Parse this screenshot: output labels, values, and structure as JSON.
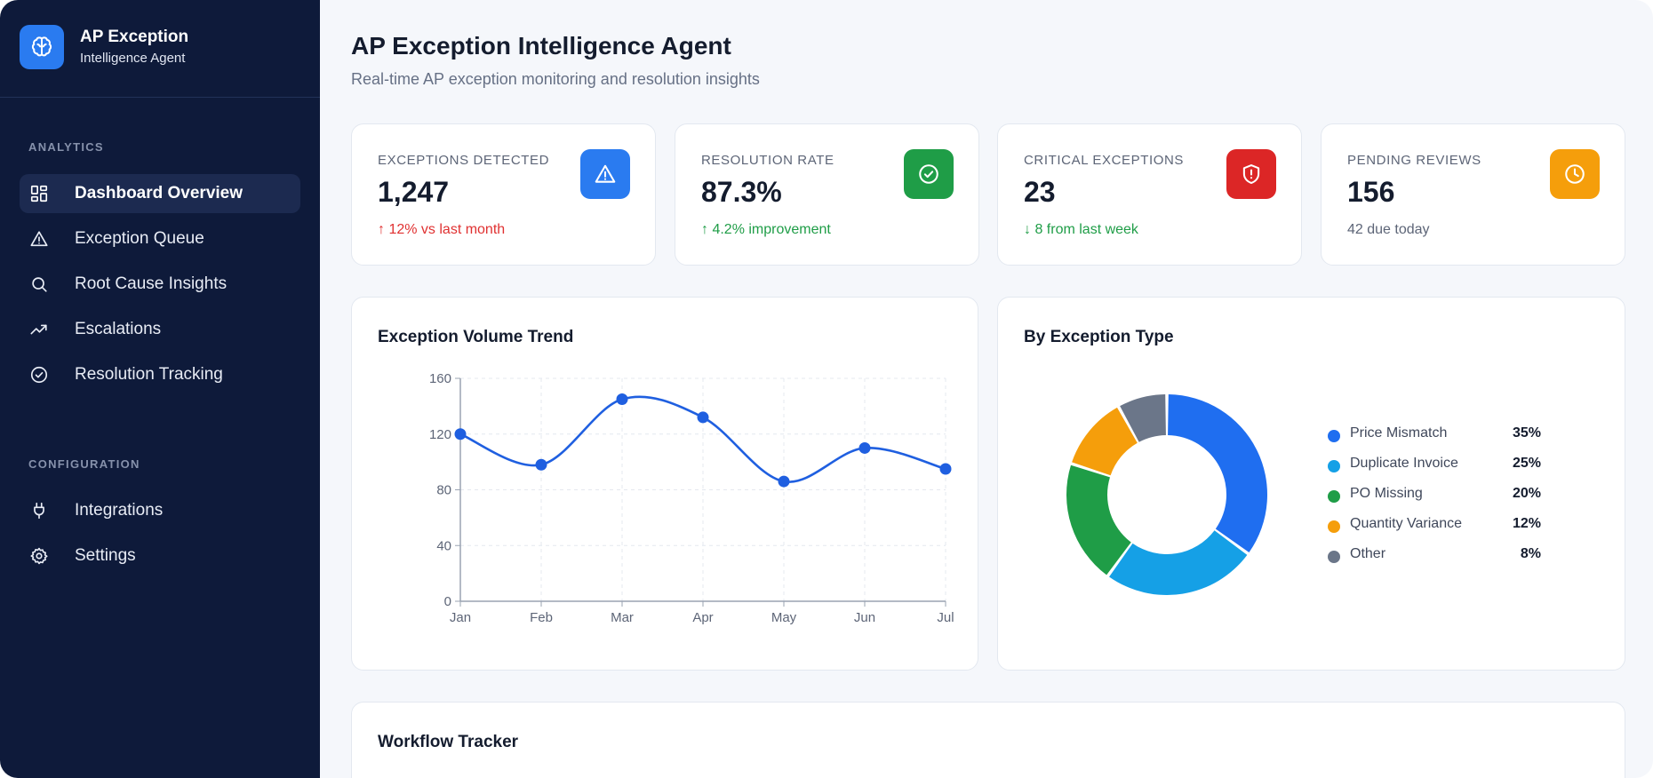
{
  "brand": {
    "title": "AP Exception",
    "subtitle": "Intelligence Agent",
    "icon": "brain-icon"
  },
  "sidebar": {
    "sections": [
      {
        "label": "ANALYTICS"
      },
      {
        "label": "CONFIGURATION"
      }
    ],
    "items": [
      {
        "label": "Dashboard Overview",
        "icon": "grid-icon",
        "active": true
      },
      {
        "label": "Exception Queue",
        "icon": "warning-icon"
      },
      {
        "label": "Root Cause Insights",
        "icon": "search-icon"
      },
      {
        "label": "Escalations",
        "icon": "trending-up-icon"
      },
      {
        "label": "Resolution Tracking",
        "icon": "check-circle-icon"
      },
      {
        "label": "Integrations",
        "icon": "plug-icon"
      },
      {
        "label": "Settings",
        "icon": "gear-icon"
      }
    ]
  },
  "header": {
    "title": "AP Exception Intelligence Agent",
    "subtitle": "Real-time AP exception monitoring and resolution insights"
  },
  "kpis": [
    {
      "label": "EXCEPTIONS DETECTED",
      "value": "1,247",
      "note": "↑ 12% vs last month",
      "note_color": "#e03131",
      "icon": "warning-icon",
      "icon_bg": "#2a7bf0"
    },
    {
      "label": "RESOLUTION RATE",
      "value": "87.3%",
      "note": "↑ 4.2% improvement",
      "note_color": "#1f9d47",
      "icon": "check-circle-icon",
      "icon_bg": "#1f9d47"
    },
    {
      "label": "CRITICAL EXCEPTIONS",
      "value": "23",
      "note": "↓ 8 from last week",
      "note_color": "#1f9d47",
      "icon": "shield-alert-icon",
      "icon_bg": "#dc2626"
    },
    {
      "label": "PENDING REVIEWS",
      "value": "156",
      "note": "42 due today",
      "note_color": "#5d6577",
      "icon": "clock-icon",
      "icon_bg": "#f59e0b"
    }
  ],
  "trend": {
    "title": "Exception Volume Trend"
  },
  "donut": {
    "title": "By Exception Type"
  },
  "workflow": {
    "title": "Workflow Tracker"
  },
  "chart_data": [
    {
      "type": "line",
      "title": "Exception Volume Trend",
      "categories": [
        "Jan",
        "Feb",
        "Mar",
        "Apr",
        "May",
        "Jun",
        "Jul"
      ],
      "values": [
        120,
        98,
        145,
        132,
        86,
        110,
        95
      ],
      "ylim": [
        0,
        160
      ],
      "yticks": [
        0,
        40,
        80,
        120,
        160
      ],
      "grid": true,
      "color": "#1f5fe0"
    },
    {
      "type": "pie",
      "title": "By Exception Type",
      "donut": true,
      "legend": "right",
      "slices": [
        {
          "label": "Price Mismatch",
          "value": 35,
          "pct": "35%",
          "color": "#1f6ef0"
        },
        {
          "label": "Duplicate Invoice",
          "value": 25,
          "pct": "25%",
          "color": "#15a0e6"
        },
        {
          "label": "PO Missing",
          "value": 20,
          "pct": "20%",
          "color": "#1f9d47"
        },
        {
          "label": "Quantity Variance",
          "value": 12,
          "pct": "12%",
          "color": "#f59e0b"
        },
        {
          "label": "Other",
          "value": 8,
          "pct": "8%",
          "color": "#6b7689"
        }
      ]
    }
  ]
}
